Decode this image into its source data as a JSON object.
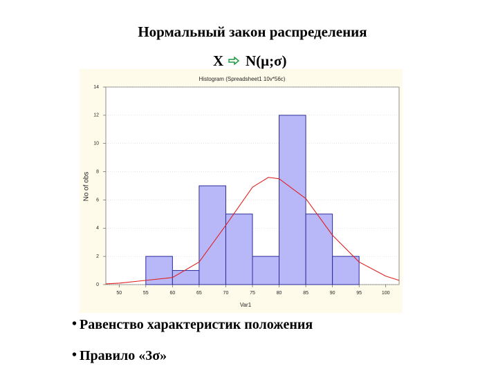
{
  "slide": {
    "title": "Нормальный закон распределения",
    "formula_left": "X",
    "formula_right": "N(μ;σ)",
    "bullets": [
      "Равенство характеристик положения",
      "Правило «3σ»"
    ]
  },
  "chart_data": {
    "type": "histogram",
    "title": "Histogram (Spreadsheet1 10v*56c)",
    "x_label": "Var1",
    "y_label": "No of obs",
    "bins": [
      55,
      60,
      65,
      70,
      75,
      80,
      85,
      90,
      95
    ],
    "counts": [
      2,
      1,
      7,
      5,
      2,
      12,
      5,
      2
    ],
    "color": "#b8b8f8",
    "edge_color": "#2a2a9a",
    "curve": {
      "color": "#e02020",
      "x": [
        47.5,
        50,
        55,
        60,
        65,
        70,
        75,
        78,
        80,
        85,
        90,
        95,
        100,
        102.5
      ],
      "values": [
        0.05,
        0.1,
        0.3,
        0.5,
        1.6,
        4.2,
        6.9,
        7.6,
        7.5,
        6.1,
        3.5,
        1.6,
        0.6,
        0.3
      ]
    },
    "xlim": [
      47.5,
      102.5
    ],
    "xticks": [
      50,
      55,
      60,
      65,
      70,
      75,
      80,
      85,
      90,
      95,
      100
    ],
    "ylim": [
      0,
      14
    ],
    "yticks": [
      0,
      2,
      4,
      6,
      8,
      10,
      12,
      14
    ],
    "grid": true
  }
}
